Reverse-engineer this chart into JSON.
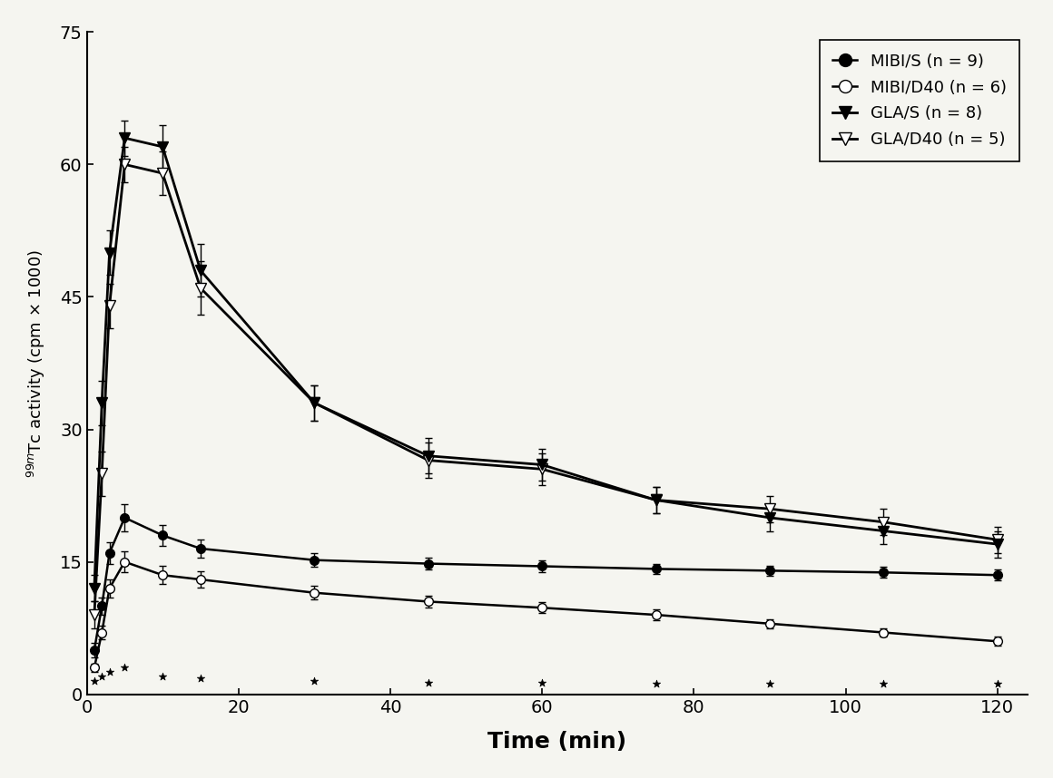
{
  "series": {
    "MIBI_S": {
      "label": "MIBI/S (n = 9)",
      "x": [
        1,
        2,
        3,
        5,
        10,
        15,
        30,
        45,
        60,
        75,
        90,
        105,
        120
      ],
      "y": [
        5,
        10,
        16,
        20,
        18,
        16.5,
        15.2,
        14.8,
        14.5,
        14.2,
        14.0,
        13.8,
        13.5
      ],
      "yerr": [
        0.8,
        1.0,
        1.2,
        1.5,
        1.2,
        1.0,
        0.8,
        0.7,
        0.7,
        0.6,
        0.6,
        0.6,
        0.6
      ],
      "marker": "o",
      "ms": 7,
      "fillstyle": "full",
      "lw": 1.8
    },
    "MIBI_D40": {
      "label": "MIBI/D40 (n = 6)",
      "x": [
        1,
        2,
        3,
        5,
        10,
        15,
        30,
        45,
        60,
        75,
        90,
        105,
        120
      ],
      "y": [
        3,
        7,
        12,
        15,
        13.5,
        13.0,
        11.5,
        10.5,
        9.8,
        9.0,
        8.0,
        7.0,
        6.0
      ],
      "yerr": [
        0.5,
        0.8,
        1.0,
        1.2,
        1.0,
        0.9,
        0.8,
        0.7,
        0.6,
        0.6,
        0.5,
        0.5,
        0.5
      ],
      "marker": "o",
      "ms": 7,
      "fillstyle": "none",
      "lw": 1.8
    },
    "GLA_S": {
      "label": "GLA/S (n = 8)",
      "x": [
        1,
        2,
        3,
        5,
        10,
        15,
        30,
        45,
        60,
        75,
        90,
        105,
        120
      ],
      "y": [
        12,
        33,
        50,
        63,
        62,
        48,
        33,
        27,
        26,
        22,
        20,
        18.5,
        17.0
      ],
      "yerr": [
        1.5,
        2.5,
        2.5,
        2.0,
        2.5,
        3.0,
        2.0,
        2.0,
        1.8,
        1.5,
        1.5,
        1.5,
        1.5
      ],
      "marker": "v",
      "ms": 9,
      "fillstyle": "full",
      "lw": 2.0
    },
    "GLA_D40": {
      "label": "GLA/D40 (n = 5)",
      "x": [
        1,
        2,
        3,
        5,
        10,
        15,
        30,
        45,
        60,
        75,
        90,
        105,
        120
      ],
      "y": [
        9,
        25,
        44,
        60,
        59,
        46,
        33,
        26.5,
        25.5,
        22,
        21,
        19.5,
        17.5
      ],
      "yerr": [
        1.5,
        2.5,
        2.5,
        2.0,
        2.5,
        3.0,
        2.0,
        2.0,
        1.8,
        1.5,
        1.5,
        1.5,
        1.5
      ],
      "marker": "v",
      "ms": 9,
      "fillstyle": "none",
      "lw": 2.0
    }
  },
  "star_x": [
    1,
    2,
    3,
    5,
    10,
    15,
    30,
    45,
    60,
    75,
    90,
    105,
    120
  ],
  "star_y": [
    1.5,
    2.0,
    2.5,
    3.0,
    2.0,
    1.8,
    1.5,
    1.3,
    1.3,
    1.2,
    1.2,
    1.2,
    1.2
  ],
  "xlabel": "Time (min)",
  "ylabel": "$^{99m}$Tc activity (cpm × 1000)",
  "xlim": [
    0,
    124
  ],
  "ylim": [
    0,
    75
  ],
  "xticks": [
    0,
    20,
    40,
    60,
    80,
    100,
    120
  ],
  "yticks": [
    0,
    15,
    30,
    45,
    60,
    75
  ],
  "bg_color": "#f5f5f0",
  "legend_labels": [
    "MIBI/S (n = 9)",
    "MIBI/D40 (n = 6)",
    "GLA/S (n = 8)",
    "GLA/D40 (n = 5)"
  ]
}
